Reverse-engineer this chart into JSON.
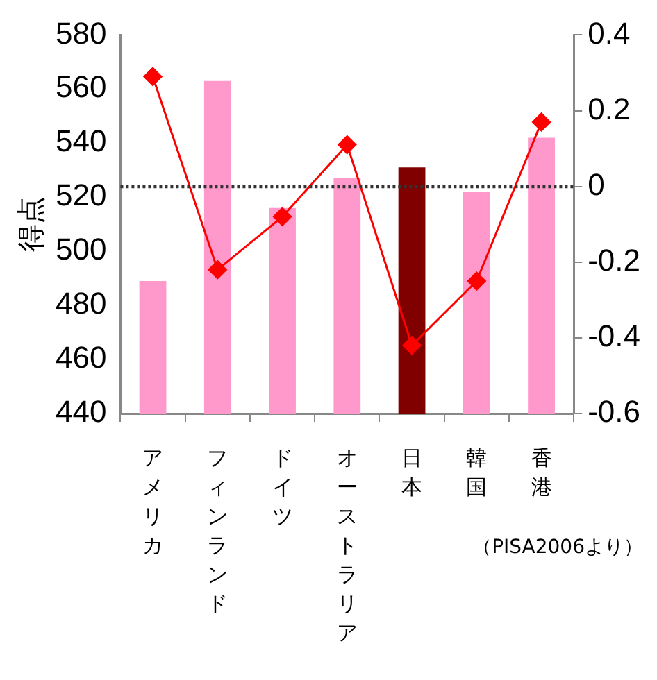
{
  "chart_data": {
    "type": "bar",
    "ylabel": "得点",
    "categories": [
      "アメリカ",
      "フィンランド",
      "ドイツ",
      "オーストラリア",
      "日本",
      "韓国",
      "香港"
    ],
    "series": [
      {
        "colors": [
          "#ff99cc",
          "#ff99cc",
          "#ff99cc",
          "#ff99cc",
          "#800000",
          "#ff99cc",
          "#ff99cc"
        ],
        "values": [
          489,
          563,
          516,
          527,
          531,
          522,
          542
        ]
      },
      {
        "type": "line",
        "axis": "y2",
        "color": "#ff0000",
        "values": [
          0.29,
          -0.22,
          -0.08,
          0.11,
          -0.42,
          -0.25,
          0.17
        ]
      }
    ],
    "ylim": [
      440,
      580
    ],
    "yticks": [
      440,
      460,
      480,
      500,
      520,
      540,
      560,
      580
    ],
    "y2lim": [
      -0.6,
      0.4
    ],
    "y2ticks": [
      -0.6,
      -0.4,
      -0.2,
      0,
      0.2,
      0.4
    ],
    "ref_lines": [
      {
        "axis": "y2",
        "value": 0,
        "line_style": "dotted",
        "color": "#333333"
      }
    ],
    "marker": "diamond",
    "grid": false,
    "legend": false,
    "annotations": [
      "（PISA2006より）"
    ]
  }
}
